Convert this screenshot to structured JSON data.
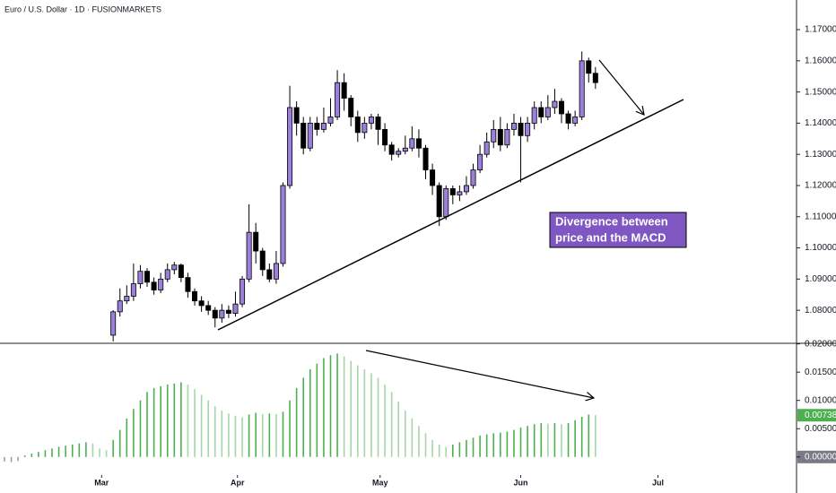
{
  "chart_data": [
    {
      "type": "candlestick",
      "title": "Euro / U.S. Dollar · 1D · FUSIONMARKETS",
      "up_color": "#9b7fdb",
      "down_color": "#000000",
      "xlim": [
        -16.66,
        100.6
      ],
      "ylim": [
        1.0694,
        1.1795
      ],
      "yticks": [
        {
          "value": 1.17,
          "label": "1.17000"
        },
        {
          "value": 1.16,
          "label": "1.16000"
        },
        {
          "value": 1.15,
          "label": "1.15000"
        },
        {
          "value": 1.14,
          "label": "1.14000"
        },
        {
          "value": 1.13,
          "label": "1.13000"
        },
        {
          "value": 1.12,
          "label": "1.12000"
        },
        {
          "value": 1.11,
          "label": "1.11000"
        },
        {
          "value": 1.1,
          "label": "1.10000"
        },
        {
          "value": 1.09,
          "label": "1.09000"
        },
        {
          "value": 1.08,
          "label": "1.08000"
        }
      ],
      "open": [
        1.072,
        1.0795,
        1.083,
        1.0845,
        1.0885,
        1.0925,
        1.089,
        1.0865,
        1.09,
        1.093,
        1.0945,
        1.0905,
        1.086,
        1.083,
        1.0815,
        1.08,
        1.0775,
        1.08,
        1.079,
        1.082,
        1.09,
        1.105,
        1.099,
        1.093,
        1.09,
        1.095,
        1.12,
        1.145,
        1.14,
        1.132,
        1.14,
        1.138,
        1.14,
        1.142,
        1.153,
        1.148,
        1.142,
        1.137,
        1.14,
        1.142,
        1.138,
        1.133,
        1.13,
        1.131,
        1.132,
        1.135,
        1.132,
        1.125,
        1.12,
        1.11,
        1.119,
        1.117,
        1.118,
        1.12,
        1.125,
        1.13,
        1.134,
        1.138,
        1.133,
        1.138,
        1.14,
        1.136,
        1.14,
        1.145,
        1.142,
        1.145,
        1.147,
        1.143,
        1.14,
        1.142,
        1.16,
        1.156
      ],
      "high": [
        1.08,
        1.087,
        1.088,
        1.095,
        1.0945,
        1.0935,
        1.0905,
        1.092,
        1.095,
        1.0955,
        1.095,
        1.092,
        1.087,
        1.0845,
        1.083,
        1.081,
        1.082,
        1.0815,
        1.086,
        1.091,
        1.114,
        1.108,
        1.1,
        1.095,
        1.099,
        1.121,
        1.152,
        1.147,
        1.142,
        1.142,
        1.142,
        1.145,
        1.148,
        1.157,
        1.156,
        1.149,
        1.144,
        1.142,
        1.143,
        1.143,
        1.14,
        1.134,
        1.132,
        1.136,
        1.139,
        1.138,
        1.133,
        1.127,
        1.121,
        1.12,
        1.12,
        1.12,
        1.123,
        1.127,
        1.133,
        1.137,
        1.141,
        1.142,
        1.14,
        1.143,
        1.142,
        1.142,
        1.147,
        1.147,
        1.149,
        1.151,
        1.148,
        1.144,
        1.144,
        1.163,
        1.161,
        1.158
      ],
      "low": [
        1.07,
        1.078,
        1.082,
        1.083,
        1.087,
        1.0875,
        1.085,
        1.0855,
        1.089,
        1.0915,
        1.089,
        1.084,
        1.0815,
        1.0795,
        1.0785,
        1.0745,
        1.076,
        1.0775,
        1.078,
        1.081,
        1.089,
        1.095,
        1.091,
        1.089,
        1.0885,
        1.094,
        1.119,
        1.136,
        1.13,
        1.131,
        1.136,
        1.137,
        1.139,
        1.141,
        1.144,
        1.139,
        1.134,
        1.135,
        1.138,
        1.133,
        1.131,
        1.128,
        1.129,
        1.13,
        1.131,
        1.129,
        1.122,
        1.117,
        1.107,
        1.109,
        1.114,
        1.115,
        1.117,
        1.119,
        1.124,
        1.129,
        1.132,
        1.131,
        1.132,
        1.136,
        1.121,
        1.134,
        1.138,
        1.14,
        1.141,
        1.143,
        1.14,
        1.138,
        1.139,
        1.141,
        1.153,
        1.151
      ],
      "close": [
        1.0795,
        1.083,
        1.0845,
        1.0885,
        1.0925,
        1.089,
        1.0865,
        1.09,
        1.093,
        1.0945,
        1.0905,
        1.086,
        1.083,
        1.0815,
        1.08,
        1.0775,
        1.08,
        1.079,
        1.082,
        1.09,
        1.105,
        1.099,
        1.093,
        1.09,
        1.095,
        1.12,
        1.145,
        1.14,
        1.132,
        1.14,
        1.138,
        1.14,
        1.142,
        1.153,
        1.148,
        1.142,
        1.137,
        1.14,
        1.142,
        1.138,
        1.133,
        1.13,
        1.131,
        1.132,
        1.135,
        1.132,
        1.125,
        1.12,
        1.11,
        1.119,
        1.117,
        1.118,
        1.12,
        1.125,
        1.13,
        1.134,
        1.138,
        1.133,
        1.138,
        1.14,
        1.136,
        1.14,
        1.145,
        1.142,
        1.145,
        1.147,
        1.143,
        1.14,
        1.142,
        1.16,
        1.156,
        1.153
      ],
      "annotation": [
        "Divergence between",
        "price and the MACD"
      ]
    },
    {
      "type": "histogram",
      "rising_color": "#4caf50",
      "falling_color": "#a5d6a7",
      "negative_color": "#9e9e9e",
      "xlim": [
        -0.66,
        116.6
      ],
      "ylim": [
        -0.0032,
        0.0201
      ],
      "xticks": [
        {
          "value": 14.3,
          "label": "Mar"
        },
        {
          "value": 34.3,
          "label": "Apr"
        },
        {
          "value": 55.3,
          "label": "May"
        },
        {
          "value": 76.0,
          "label": "Jun"
        },
        {
          "value": 96.2,
          "label": "Jul"
        }
      ],
      "yticks": [
        {
          "value": 0.02,
          "label": "0.02000"
        },
        {
          "value": 0.015,
          "label": "0.01500"
        },
        {
          "value": 0.01,
          "label": "0.01000"
        },
        {
          "value": 0.005,
          "label": "0.00500"
        },
        {
          "value": 0,
          "label": "0.00000"
        }
      ],
      "last_value": {
        "value": 0.00738,
        "label": "0.00738"
      },
      "values": [
        -0.0008,
        -0.0009,
        -0.0007,
        0.0003,
        0.0006,
        0.0009,
        0.0012,
        0.0015,
        0.0018,
        0.002,
        0.0022,
        0.0024,
        0.0026,
        0.0024,
        0.0015,
        0.0012,
        0.003,
        0.0048,
        0.0068,
        0.0085,
        0.01,
        0.0115,
        0.0122,
        0.0125,
        0.0128,
        0.013,
        0.0132,
        0.0128,
        0.012,
        0.011,
        0.01,
        0.009,
        0.0082,
        0.0077,
        0.0073,
        0.007,
        0.0075,
        0.0078,
        0.0076,
        0.0077,
        0.0076,
        0.008,
        0.01,
        0.0122,
        0.014,
        0.0155,
        0.0165,
        0.0175,
        0.018,
        0.0183,
        0.0178,
        0.017,
        0.0162,
        0.0155,
        0.0148,
        0.014,
        0.0128,
        0.0115,
        0.0098,
        0.0082,
        0.0068,
        0.0055,
        0.0042,
        0.003,
        0.0022,
        0.0018,
        0.0022,
        0.0026,
        0.003,
        0.0034,
        0.0038,
        0.004,
        0.0042,
        0.0043,
        0.0045,
        0.0048,
        0.0052,
        0.0055,
        0.0058,
        0.006,
        0.0059,
        0.006,
        0.0058,
        0.006,
        0.0065,
        0.0071,
        0.0075,
        0.0074
      ]
    }
  ]
}
